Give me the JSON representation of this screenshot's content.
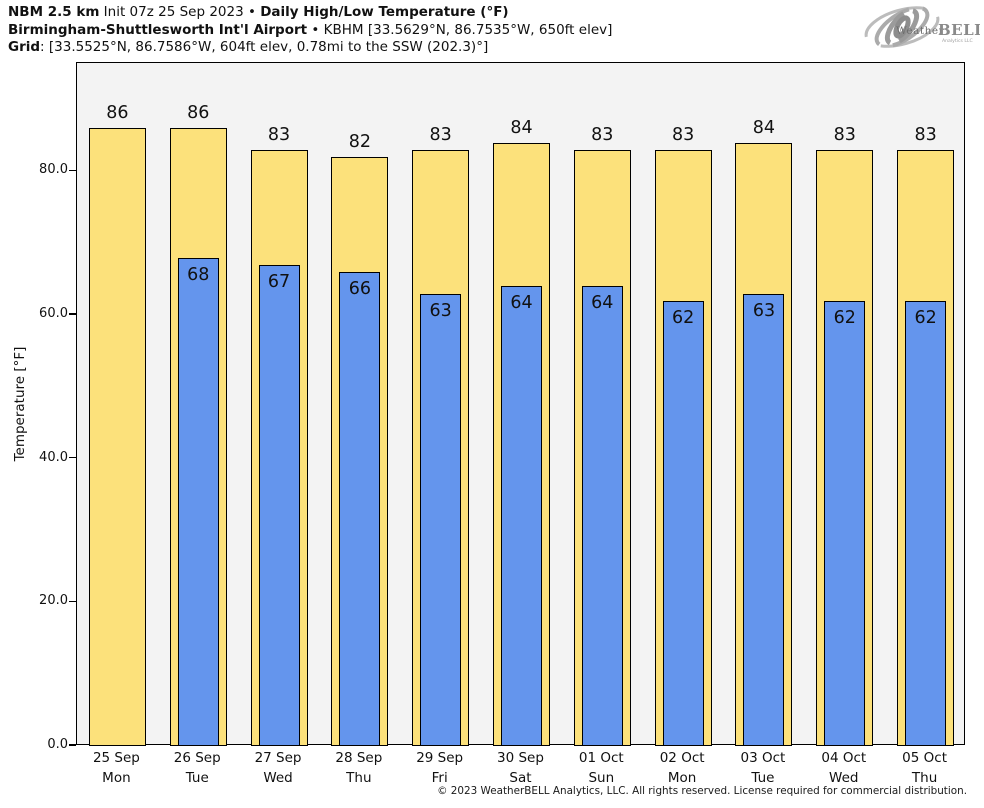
{
  "header": {
    "line1": [
      "NBM 2.5 km",
      " Init 07z 25 Sep 2023 • ",
      "Daily High/Low Temperature (°F)"
    ],
    "line2": [
      "Birmingham-Shuttlesworth Int'l Airport",
      " • KBHM [33.5629°N, 86.7535°W, 650ft elev]"
    ],
    "line3": [
      "Grid",
      ": [33.5525°N, 86.7586°W, 604ft elev, 0.78mi to the SSW (202.3)°]"
    ]
  },
  "logo": {
    "weather": "Weather",
    "bell": "BELL",
    "sub": "Analytics LLC"
  },
  "chart_data": {
    "type": "bar",
    "title": "Daily High/Low Temperature (°F)",
    "ylabel": "Temperature [°F]",
    "ylim": [
      0,
      95.1
    ],
    "grid": false,
    "legend_position": "none",
    "plot_background": "#F3F3F3",
    "bar_edge_color": "#000000",
    "yticks": [
      {
        "value": 0,
        "label": "0.0"
      },
      {
        "value": 20,
        "label": "20.0"
      },
      {
        "value": 40,
        "label": "40.0"
      },
      {
        "value": 60,
        "label": "60.0"
      },
      {
        "value": 80,
        "label": "80.0"
      }
    ],
    "categories": [
      {
        "date": "25 Sep",
        "day": "Mon"
      },
      {
        "date": "26 Sep",
        "day": "Tue"
      },
      {
        "date": "27 Sep",
        "day": "Wed"
      },
      {
        "date": "28 Sep",
        "day": "Thu"
      },
      {
        "date": "29 Sep",
        "day": "Fri"
      },
      {
        "date": "30 Sep",
        "day": "Sat"
      },
      {
        "date": "01 Oct",
        "day": "Sun"
      },
      {
        "date": "02 Oct",
        "day": "Mon"
      },
      {
        "date": "03 Oct",
        "day": "Tue"
      },
      {
        "date": "04 Oct",
        "day": "Wed"
      },
      {
        "date": "05 Oct",
        "day": "Thu"
      }
    ],
    "series": [
      {
        "name": "High",
        "color": "#FCE17B",
        "bar_width_frac": 0.705,
        "values": [
          86,
          86,
          83,
          82,
          83,
          84,
          83,
          83,
          84,
          83,
          83
        ]
      },
      {
        "name": "Low",
        "color": "#6495ED",
        "bar_width_frac": 0.507,
        "values": [
          null,
          68,
          67,
          66,
          63,
          64,
          64,
          62,
          63,
          62,
          62
        ]
      }
    ]
  },
  "footer": {
    "copyright": "© 2023 WeatherBELL Analytics, LLC. All rights reserved. License required for commercial distribution."
  }
}
